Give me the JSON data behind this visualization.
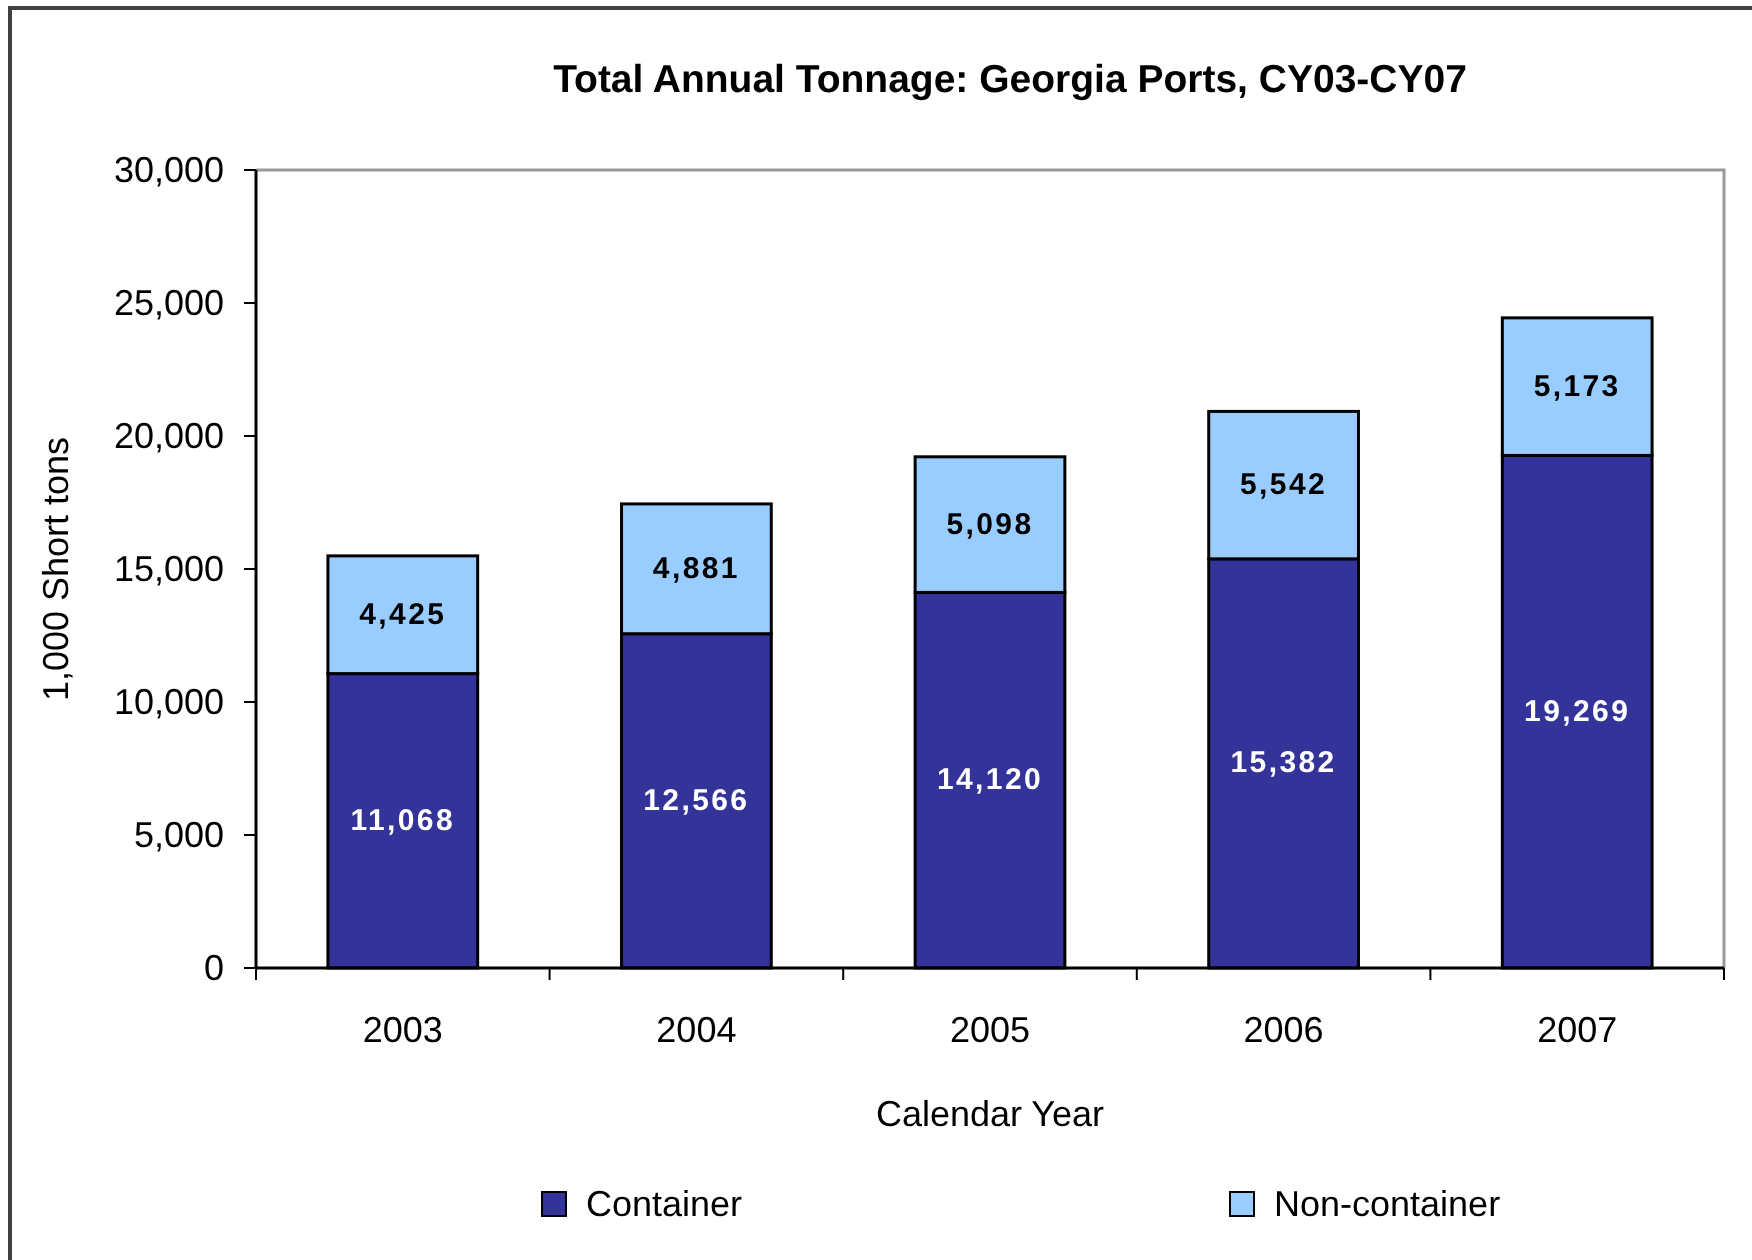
{
  "chart_data": {
    "type": "bar",
    "title": "Total Annual Tonnage: Georgia Ports, CY03-CY07",
    "xlabel": "Calendar Year",
    "ylabel": "1,000 Short tons",
    "categories": [
      "2003",
      "2004",
      "2005",
      "2006",
      "2007"
    ],
    "series": [
      {
        "name": "Container",
        "color": "#333399",
        "values": [
          11068,
          12566,
          14120,
          15382,
          19269
        ],
        "value_labels": [
          "11,068",
          "12,566",
          "14,120",
          "15,382",
          "19,269"
        ]
      },
      {
        "name": "Non-container",
        "color": "#99ccff",
        "values": [
          4425,
          4881,
          5098,
          5542,
          5173
        ],
        "value_labels": [
          "4,425",
          "4,881",
          "5,098",
          "5,542",
          "5,173"
        ]
      }
    ],
    "stacked": true,
    "ylim": [
      0,
      30000
    ],
    "yticks": [
      {
        "value": 0,
        "label": "0"
      },
      {
        "value": 5000,
        "label": "5,000"
      },
      {
        "value": 10000,
        "label": "10,000"
      },
      {
        "value": 15000,
        "label": "15,000"
      },
      {
        "value": 20000,
        "label": "20,000"
      },
      {
        "value": 25000,
        "label": "25,000"
      },
      {
        "value": 30000,
        "label": "30,000"
      }
    ],
    "grid": false,
    "legend": "bottom"
  }
}
